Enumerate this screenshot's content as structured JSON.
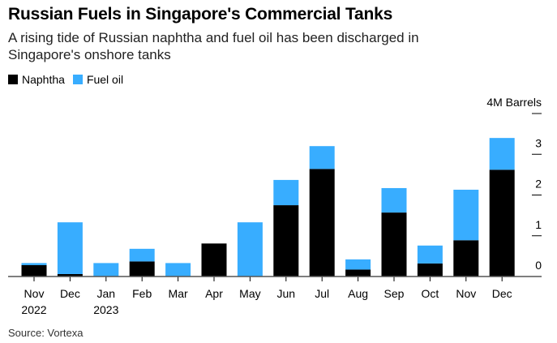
{
  "title": "Russian Fuels in Singapore's Commercial Tanks",
  "subtitle": "A rising tide of Russian naphtha and fuel oil has been discharged in Singapore's onshore tanks",
  "source": "Source: Vortexa",
  "chart_data": {
    "type": "bar",
    "stacked": true,
    "categories": [
      "Nov",
      "Dec",
      "Jan",
      "Feb",
      "Mar",
      "Apr",
      "May",
      "Jun",
      "Jul",
      "Aug",
      "Sep",
      "Oct",
      "Nov",
      "Dec"
    ],
    "year_labels": [
      "2022",
      "",
      "2023",
      "",
      "",
      "",
      "",
      "",
      "",
      "",
      "",
      "",
      "",
      ""
    ],
    "series": [
      {
        "name": "Naphtha",
        "color": "#000000",
        "values": [
          0.28,
          0.06,
          0,
          0.37,
          0,
          0.81,
          0,
          1.75,
          2.64,
          0.17,
          1.57,
          0.32,
          0.89,
          2.62
        ]
      },
      {
        "name": "Fuel oil",
        "color": "#38adff",
        "values": [
          0.05,
          1.27,
          0.33,
          0.31,
          0.33,
          0,
          1.33,
          0.62,
          0.56,
          0.25,
          0.6,
          0.44,
          1.24,
          0.78
        ]
      }
    ],
    "y_unit_label": "4M Barrels",
    "yticks": [
      "0",
      "1",
      "2",
      "3"
    ],
    "ylim": [
      0,
      4
    ],
    "legend_position": "top-left",
    "grid": false
  }
}
